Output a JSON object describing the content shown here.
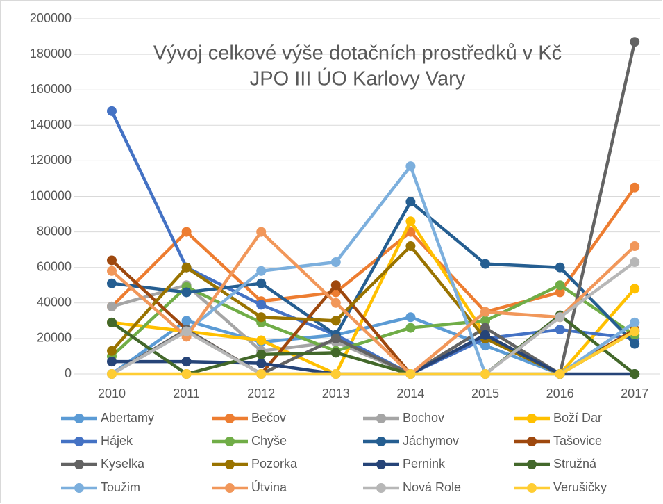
{
  "chart_data": {
    "type": "line",
    "title": [
      "Vývoj celkové výše dotačních prostředků v Kč",
      "JPO III ÚO Karlovy Vary"
    ],
    "categories": [
      "2010",
      "2011",
      "2012",
      "2013",
      "2014",
      "2015",
      "2016",
      "2017"
    ],
    "ylim": [
      0,
      200000
    ],
    "yticks": [
      0,
      20000,
      40000,
      60000,
      80000,
      100000,
      120000,
      140000,
      160000,
      180000,
      200000
    ],
    "grid": true,
    "legend": "bottom",
    "series": [
      {
        "name": "Abertamy",
        "color": "#5b9bd5",
        "values": [
          0,
          30000,
          18000,
          22000,
          32000,
          16000,
          0,
          29000
        ]
      },
      {
        "name": "Bečov",
        "color": "#ed7d31",
        "values": [
          38000,
          80000,
          41000,
          46000,
          80000,
          35000,
          46000,
          105000
        ]
      },
      {
        "name": "Bochov",
        "color": "#a5a5a5",
        "values": [
          38000,
          50000,
          13000,
          18000,
          0,
          0,
          0,
          24000
        ]
      },
      {
        "name": "Boží Dar",
        "color": "#ffc000",
        "values": [
          29000,
          24000,
          19000,
          0,
          86000,
          22000,
          0,
          48000
        ]
      },
      {
        "name": "Hájek",
        "color": "#4472c4",
        "values": [
          148000,
          60000,
          39000,
          22000,
          0,
          20000,
          25000,
          20000
        ]
      },
      {
        "name": "Chyše",
        "color": "#70ad47",
        "values": [
          10000,
          49000,
          29000,
          13000,
          26000,
          30000,
          50000,
          22000
        ]
      },
      {
        "name": "Jáchymov",
        "color": "#255e91",
        "values": [
          51000,
          46000,
          51000,
          22000,
          97000,
          62000,
          60000,
          17000
        ]
      },
      {
        "name": "Tašovice",
        "color": "#9e480e",
        "values": [
          64000,
          25000,
          0,
          50000,
          0,
          22000,
          0,
          25000
        ]
      },
      {
        "name": "Kyselka",
        "color": "#636363",
        "values": [
          0,
          25000,
          0,
          20000,
          0,
          26000,
          0,
          187000
        ]
      },
      {
        "name": "Pozorka",
        "color": "#997300",
        "values": [
          13000,
          60000,
          32000,
          30000,
          72000,
          20000,
          0,
          24000
        ]
      },
      {
        "name": "Pernink",
        "color": "#264478",
        "values": [
          7000,
          7000,
          6000,
          0,
          0,
          22000,
          0,
          0
        ]
      },
      {
        "name": "Stružná",
        "color": "#43682b",
        "values": [
          29000,
          0,
          11000,
          12000,
          0,
          0,
          33000,
          0
        ]
      },
      {
        "name": "Toužim",
        "color": "#7cafdd",
        "values": [
          0,
          24000,
          58000,
          63000,
          117000,
          0,
          0,
          29000
        ]
      },
      {
        "name": "Útvina",
        "color": "#f1975a",
        "values": [
          58000,
          21000,
          80000,
          40000,
          0,
          35000,
          32000,
          72000
        ]
      },
      {
        "name": "Nová Role",
        "color": "#b7b7b7",
        "values": [
          0,
          24000,
          0,
          0,
          0,
          0,
          32000,
          63000
        ]
      },
      {
        "name": "Verušičky",
        "color": "#ffcd33",
        "values": [
          0,
          0,
          0,
          0,
          0,
          0,
          0,
          24000
        ]
      }
    ]
  }
}
